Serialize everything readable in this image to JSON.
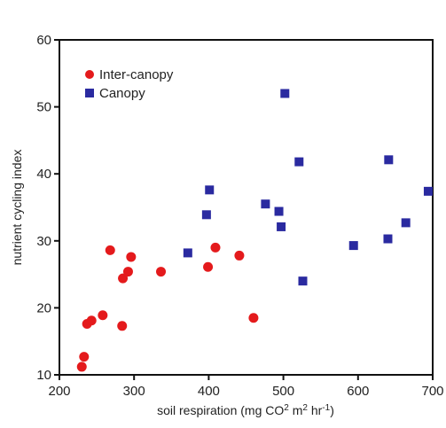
{
  "chart_data": {
    "type": "scatter",
    "title": "",
    "xlabel": "soil respiration (mg CO",
    "xlabel_parts": [
      "soil respiration (mg CO",
      "2",
      " m",
      "2",
      " hr",
      "-1",
      ")"
    ],
    "ylabel": "nutrient cycling index",
    "xlim": [
      200,
      700
    ],
    "ylim": [
      10,
      60
    ],
    "xticks": [
      "200",
      "300",
      "400",
      "500",
      "600",
      "700"
    ],
    "yticks": [
      "10",
      "20",
      "30",
      "40",
      "50",
      "60"
    ],
    "grid": false,
    "legend_position": "top-left",
    "series": [
      {
        "name": "Inter-canopy",
        "color": "#e41a1c",
        "marker": "circle",
        "points": [
          {
            "x": 230,
            "y": 11.2
          },
          {
            "x": 233,
            "y": 12.7
          },
          {
            "x": 237,
            "y": 17.6
          },
          {
            "x": 243,
            "y": 18.1
          },
          {
            "x": 258,
            "y": 18.9
          },
          {
            "x": 268,
            "y": 28.6
          },
          {
            "x": 284,
            "y": 17.3
          },
          {
            "x": 285,
            "y": 24.4
          },
          {
            "x": 292,
            "y": 25.4
          },
          {
            "x": 296,
            "y": 27.6
          },
          {
            "x": 336,
            "y": 25.4
          },
          {
            "x": 399,
            "y": 26.1
          },
          {
            "x": 409,
            "y": 29.0
          },
          {
            "x": 441,
            "y": 27.8
          },
          {
            "x": 460,
            "y": 18.5
          }
        ]
      },
      {
        "name": "Canopy",
        "color": "#2a2aa0",
        "marker": "square",
        "points": [
          {
            "x": 372,
            "y": 28.2
          },
          {
            "x": 397,
            "y": 33.9
          },
          {
            "x": 401,
            "y": 37.6
          },
          {
            "x": 476,
            "y": 35.5
          },
          {
            "x": 494,
            "y": 34.4
          },
          {
            "x": 497,
            "y": 32.1
          },
          {
            "x": 502,
            "y": 52.0
          },
          {
            "x": 521,
            "y": 41.8
          },
          {
            "x": 526,
            "y": 24.0
          },
          {
            "x": 594,
            "y": 29.3
          },
          {
            "x": 640,
            "y": 30.3
          },
          {
            "x": 641,
            "y": 42.1
          },
          {
            "x": 664,
            "y": 32.7
          },
          {
            "x": 694,
            "y": 37.4
          }
        ]
      }
    ]
  }
}
